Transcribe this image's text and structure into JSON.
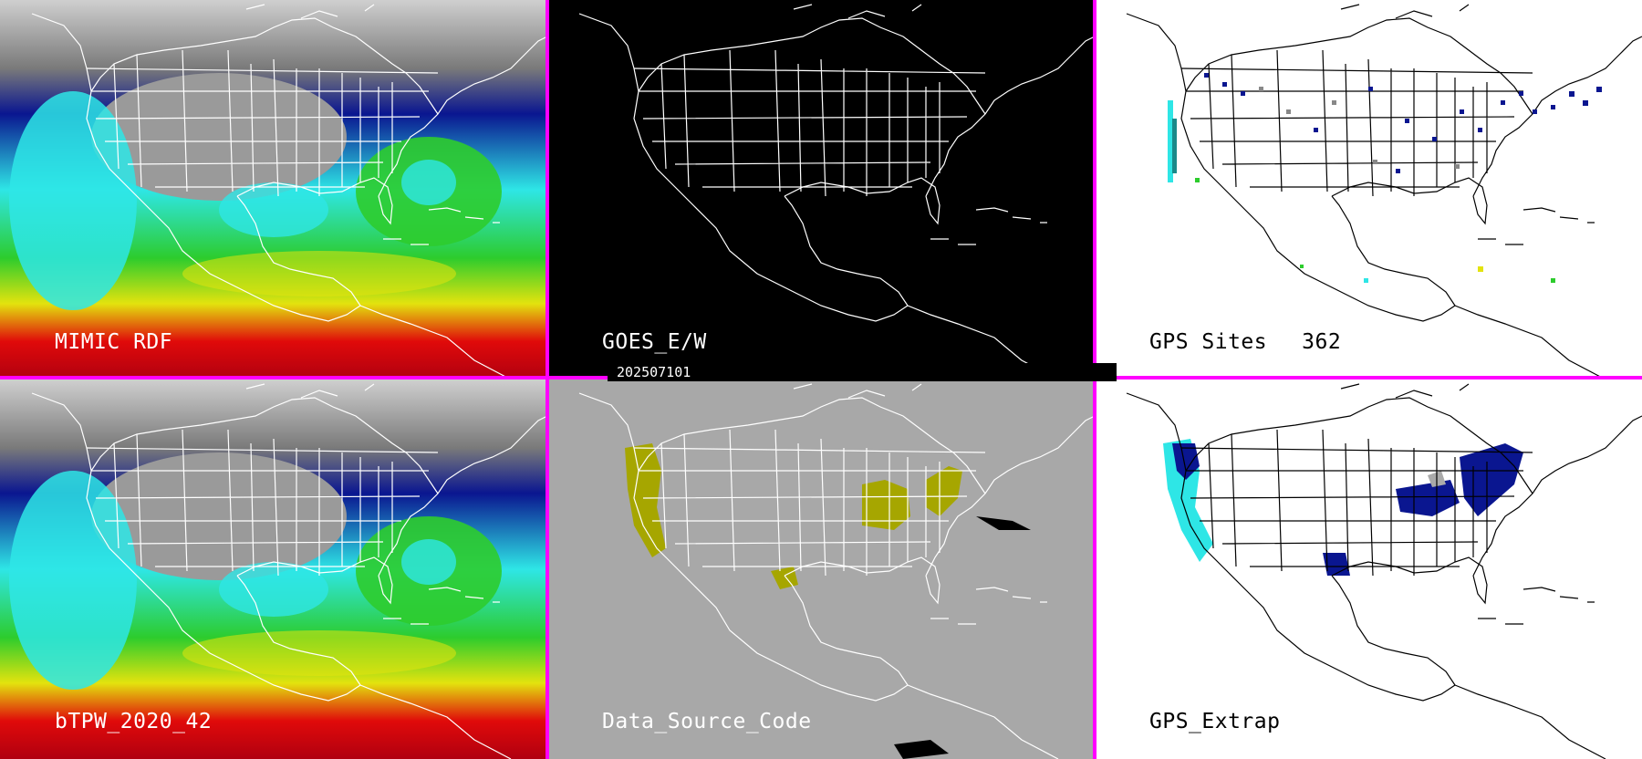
{
  "panels": [
    {
      "id": "mimic-rdf",
      "label": "MIMIC RDF",
      "style": "tpw"
    },
    {
      "id": "goes-ew",
      "label": "GOES_E/W",
      "style": "black"
    },
    {
      "id": "gps-sites",
      "label": "GPS Sites",
      "count": "362",
      "style": "sites"
    },
    {
      "id": "btpw",
      "label": "bTPW_2020_42",
      "style": "tpw"
    },
    {
      "id": "data-source-code",
      "label": "Data_Source_Code",
      "style": "gray"
    },
    {
      "id": "gps-extrap",
      "label": "GPS_Extrap",
      "style": "extrap"
    }
  ],
  "date_stamp": "202507101",
  "colors": {
    "divider": "#ff00ff",
    "map_outline_dark": "#000000",
    "map_outline_light": "#ffffff",
    "tpw_low": "#9a9a9a",
    "tpw_blue": "#0a1690",
    "tpw_cyan": "#2ee6e6",
    "tpw_green": "#2dcc2d",
    "tpw_yellow": "#e3e30e",
    "tpw_red": "#e00a0a",
    "data_source_fill": "#a6a600",
    "gray_background": "#a8a8a8"
  }
}
